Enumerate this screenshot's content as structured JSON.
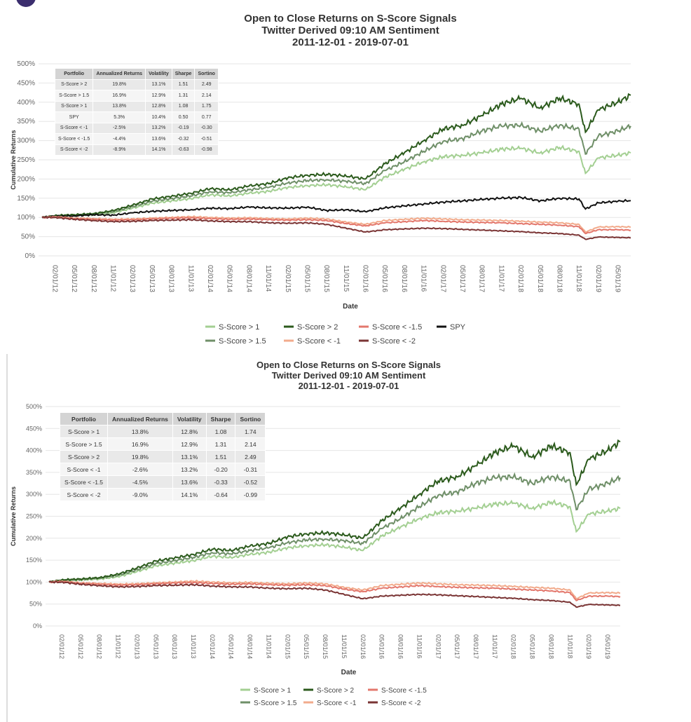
{
  "colors": {
    "S-Score > 1": "#a3cf92",
    "S-Score > 1.5": "#6f8f68",
    "S-Score > 2": "#2b5a1c",
    "S-Score < -1": "#f2ab8c",
    "S-Score < -1.5": "#e3776c",
    "S-Score < -2": "#7a3434",
    "SPY": "#111111"
  },
  "chart_data": [
    {
      "type": "line",
      "title": "Open to Close Returns on S-Score Signals",
      "subtitle": "Twitter Derived 09:10 AM Sentiment",
      "date_range": "2011-12-01 - 2019-07-01",
      "xlabel": "Date",
      "ylabel": "Cumulative Returns",
      "ylim": [
        0,
        500
      ],
      "yticks": [
        "0%",
        "50%",
        "100%",
        "150%",
        "200%",
        "250%",
        "300%",
        "350%",
        "400%",
        "450%",
        "500%"
      ],
      "xticks": [
        "02/01/12",
        "05/01/12",
        "08/01/12",
        "11/01/12",
        "02/01/13",
        "05/01/13",
        "08/01/13",
        "11/01/13",
        "02/01/14",
        "05/01/14",
        "08/01/14",
        "11/01/14",
        "02/01/15",
        "05/01/15",
        "08/01/15",
        "11/01/15",
        "02/01/16",
        "05/01/16",
        "08/01/16",
        "11/01/16",
        "02/01/17",
        "05/01/17",
        "08/01/17",
        "11/01/17",
        "02/01/18",
        "05/01/18",
        "08/01/18",
        "11/01/18",
        "02/01/19",
        "05/01/19"
      ],
      "grid": true,
      "legend_position": "bottom",
      "legend": [
        "S-Score > 1",
        "S-Score > 2",
        "S-Score < -1.5",
        "SPY",
        "S-Score > 1.5",
        "S-Score < -1",
        "S-Score < -2"
      ],
      "x": [
        "2011-12",
        "2012-02",
        "2012-05",
        "2012-08",
        "2012-11",
        "2013-02",
        "2013-05",
        "2013-08",
        "2013-11",
        "2014-02",
        "2014-05",
        "2014-08",
        "2014-11",
        "2015-02",
        "2015-05",
        "2015-08",
        "2015-11",
        "2016-02",
        "2016-05",
        "2016-08",
        "2016-11",
        "2017-02",
        "2017-05",
        "2017-08",
        "2017-11",
        "2018-02",
        "2018-05",
        "2018-08",
        "2018-11",
        "2018-12",
        "2019-02",
        "2019-05",
        "2019-07"
      ],
      "series": [
        {
          "name": "S-Score > 1",
          "values": [
            100,
            103,
            105,
            107,
            112,
            124,
            137,
            143,
            149,
            159,
            156,
            163,
            168,
            178,
            183,
            185,
            180,
            172,
            205,
            225,
            245,
            258,
            262,
            268,
            278,
            280,
            268,
            282,
            272,
            215,
            255,
            262,
            268
          ]
        },
        {
          "name": "S-Score > 1.5",
          "values": [
            100,
            104,
            106,
            109,
            115,
            128,
            142,
            149,
            156,
            167,
            164,
            172,
            178,
            190,
            196,
            198,
            194,
            188,
            222,
            245,
            272,
            298,
            305,
            325,
            338,
            340,
            325,
            340,
            330,
            265,
            312,
            325,
            338
          ]
        },
        {
          "name": "S-Score > 2",
          "values": [
            100,
            105,
            107,
            110,
            118,
            132,
            148,
            155,
            163,
            175,
            172,
            182,
            188,
            203,
            210,
            212,
            208,
            200,
            240,
            268,
            300,
            330,
            340,
            365,
            395,
            410,
            385,
            410,
            395,
            322,
            380,
            400,
            418
          ]
        },
        {
          "name": "SPY",
          "values": [
            100,
            103,
            104,
            107,
            106,
            112,
            116,
            118,
            120,
            124,
            123,
            127,
            125,
            124,
            127,
            118,
            120,
            115,
            125,
            130,
            135,
            140,
            143,
            147,
            150,
            152,
            143,
            150,
            148,
            122,
            138,
            142,
            144
          ]
        },
        {
          "name": "S-Score < -1",
          "values": [
            100,
            102,
            98,
            97,
            95,
            96,
            98,
            100,
            102,
            100,
            98,
            99,
            97,
            96,
            98,
            96,
            88,
            82,
            92,
            95,
            98,
            96,
            94,
            93,
            92,
            90,
            88,
            86,
            82,
            62,
            75,
            76,
            75
          ]
        },
        {
          "name": "S-Score < -1.5",
          "values": [
            100,
            101,
            97,
            95,
            93,
            94,
            96,
            98,
            99,
            97,
            95,
            96,
            94,
            93,
            94,
            92,
            84,
            78,
            86,
            89,
            92,
            90,
            88,
            87,
            86,
            84,
            82,
            80,
            76,
            58,
            68,
            68,
            67
          ]
        },
        {
          "name": "S-Score < -2",
          "values": [
            100,
            100,
            95,
            92,
            89,
            90,
            92,
            93,
            94,
            91,
            89,
            89,
            86,
            85,
            86,
            82,
            72,
            62,
            68,
            70,
            72,
            71,
            69,
            67,
            65,
            63,
            60,
            58,
            54,
            43,
            49,
            48,
            47
          ]
        }
      ],
      "table": {
        "headers": [
          "Portfolio",
          "Annualized Returns",
          "Volatility",
          "Sharpe",
          "Sortino"
        ],
        "rows": [
          [
            "S-Score > 2",
            "19.8%",
            "13.1%",
            "1.51",
            "2.49"
          ],
          [
            "S-Score > 1.5",
            "16.9%",
            "12.9%",
            "1.31",
            "2.14"
          ],
          [
            "S-Score > 1",
            "13.8%",
            "12.8%",
            "1.08",
            "1.75"
          ],
          [
            "SPY",
            "5.3%",
            "10.4%",
            "0.50",
            "0.77"
          ],
          [
            "S-Score < -1",
            "-2.5%",
            "13.2%",
            "-0.19",
            "-0.30"
          ],
          [
            "S-Score < -1.5",
            "-4.4%",
            "13.6%",
            "-0.32",
            "-0.51"
          ],
          [
            "S-Score < -2",
            "-8.9%",
            "14.1%",
            "-0.63",
            "-0.98"
          ]
        ]
      }
    },
    {
      "type": "line",
      "title": "Open to Close Returns on S-Score Signals",
      "subtitle": "Twitter Derived 09:10 AM Sentiment",
      "date_range": "2011-12-01 - 2019-07-01",
      "xlabel": "Date",
      "ylabel": "Cumulative Returns",
      "ylim": [
        0,
        500
      ],
      "yticks": [
        "0%",
        "50%",
        "100%",
        "150%",
        "200%",
        "250%",
        "300%",
        "350%",
        "400%",
        "450%",
        "500%"
      ],
      "xticks": [
        "02/01/12",
        "05/01/12",
        "08/01/12",
        "11/01/12",
        "02/01/13",
        "05/01/13",
        "08/01/13",
        "11/01/13",
        "02/01/14",
        "05/01/14",
        "08/01/14",
        "11/01/14",
        "02/01/15",
        "05/01/15",
        "08/01/15",
        "11/01/15",
        "02/01/16",
        "05/01/16",
        "08/01/16",
        "11/01/16",
        "02/01/17",
        "05/01/17",
        "08/01/17",
        "11/01/17",
        "02/01/18",
        "05/01/18",
        "08/01/18",
        "11/01/18",
        "02/01/19",
        "05/01/19"
      ],
      "grid": true,
      "legend_position": "bottom",
      "legend": [
        "S-Score > 1",
        "S-Score > 2",
        "S-Score < -1.5",
        "S-Score > 1.5",
        "S-Score < -1",
        "S-Score < -2"
      ],
      "x": [
        "2011-12",
        "2012-02",
        "2012-05",
        "2012-08",
        "2012-11",
        "2013-02",
        "2013-05",
        "2013-08",
        "2013-11",
        "2014-02",
        "2014-05",
        "2014-08",
        "2014-11",
        "2015-02",
        "2015-05",
        "2015-08",
        "2015-11",
        "2016-02",
        "2016-05",
        "2016-08",
        "2016-11",
        "2017-02",
        "2017-05",
        "2017-08",
        "2017-11",
        "2018-02",
        "2018-05",
        "2018-08",
        "2018-11",
        "2018-12",
        "2019-02",
        "2019-05",
        "2019-07"
      ],
      "series": [
        {
          "name": "S-Score > 1",
          "values": [
            100,
            103,
            105,
            107,
            112,
            124,
            137,
            143,
            149,
            159,
            156,
            163,
            168,
            178,
            183,
            185,
            180,
            172,
            205,
            225,
            245,
            258,
            262,
            268,
            278,
            280,
            268,
            282,
            272,
            215,
            255,
            262,
            268
          ]
        },
        {
          "name": "S-Score > 1.5",
          "values": [
            100,
            104,
            106,
            109,
            115,
            128,
            142,
            149,
            156,
            167,
            164,
            172,
            178,
            190,
            196,
            198,
            194,
            188,
            222,
            245,
            272,
            298,
            305,
            325,
            338,
            340,
            325,
            340,
            330,
            265,
            312,
            325,
            338
          ]
        },
        {
          "name": "S-Score > 2",
          "values": [
            100,
            105,
            107,
            110,
            118,
            132,
            148,
            155,
            163,
            175,
            172,
            182,
            188,
            203,
            210,
            212,
            208,
            200,
            240,
            268,
            300,
            330,
            340,
            365,
            395,
            410,
            385,
            410,
            395,
            322,
            380,
            400,
            420
          ]
        },
        {
          "name": "S-Score < -1",
          "values": [
            100,
            102,
            98,
            97,
            95,
            96,
            98,
            100,
            102,
            100,
            98,
            99,
            97,
            96,
            98,
            96,
            88,
            82,
            92,
            95,
            98,
            96,
            94,
            93,
            92,
            90,
            88,
            86,
            82,
            62,
            75,
            76,
            75
          ]
        },
        {
          "name": "S-Score < -1.5",
          "values": [
            100,
            101,
            97,
            95,
            93,
            94,
            96,
            98,
            99,
            97,
            95,
            96,
            94,
            93,
            94,
            92,
            84,
            78,
            86,
            89,
            92,
            90,
            88,
            87,
            86,
            84,
            82,
            80,
            76,
            58,
            68,
            68,
            67
          ]
        },
        {
          "name": "S-Score < -2",
          "values": [
            100,
            100,
            95,
            92,
            89,
            90,
            92,
            93,
            94,
            91,
            89,
            89,
            86,
            85,
            86,
            82,
            72,
            62,
            68,
            70,
            72,
            71,
            69,
            67,
            65,
            63,
            60,
            58,
            54,
            43,
            49,
            48,
            47
          ]
        }
      ],
      "table": {
        "headers": [
          "Portfolio",
          "Annualized Returns",
          "Volatility",
          "Sharpe",
          "Sortino"
        ],
        "rows": [
          [
            "S-Score > 1",
            "13.8%",
            "12.8%",
            "1.08",
            "1.74"
          ],
          [
            "S-Score > 1.5",
            "16.9%",
            "12.9%",
            "1.31",
            "2.14"
          ],
          [
            "S-Score > 2",
            "19.8%",
            "13.1%",
            "1.51",
            "2.49"
          ],
          [
            "S-Score < -1",
            "-2.6%",
            "13.2%",
            "-0.20",
            "-0.31"
          ],
          [
            "S-Score < -1.5",
            "-4.5%",
            "13.6%",
            "-0.33",
            "-0.52"
          ],
          [
            "S-Score < -2",
            "-9.0%",
            "14.1%",
            "-0.64",
            "-0.99"
          ]
        ]
      }
    }
  ]
}
